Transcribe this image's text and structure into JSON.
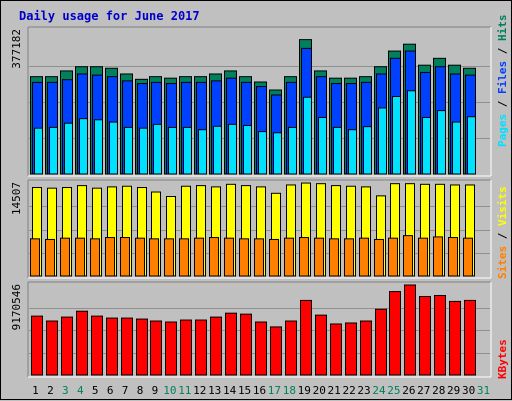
{
  "title": "Daily usage for June 2017",
  "colors": {
    "hits": "#00805c",
    "files": "#0040ff",
    "pages": "#00e0ff",
    "visits": "#ffff00",
    "sites": "#ff8000",
    "kbytes": "#ff0000",
    "weekday_label": "#000000",
    "weekend_label": "#00805c",
    "panel_bg": "#c0c0c0",
    "title": "#0000cc"
  },
  "right_labels": {
    "top": [
      {
        "text": "Hits",
        "color": "#00805c"
      },
      {
        "text": " / ",
        "color": "#000000"
      },
      {
        "text": "Files",
        "color": "#0040ff"
      },
      {
        "text": " / ",
        "color": "#000000"
      },
      {
        "text": "Pages",
        "color": "#00e0ff"
      }
    ],
    "middle": [
      {
        "text": "Visits",
        "color": "#ffff00"
      },
      {
        "text": " / ",
        "color": "#000000"
      },
      {
        "text": "Sites",
        "color": "#ff8000"
      }
    ],
    "bottom": [
      {
        "text": "KBytes",
        "color": "#ff0000"
      }
    ]
  },
  "chart_data": {
    "type": "bar",
    "title": "Daily usage for June 2017",
    "x": [
      "1",
      "2",
      "3",
      "4",
      "5",
      "6",
      "7",
      "8",
      "9",
      "10",
      "11",
      "12",
      "13",
      "14",
      "15",
      "16",
      "17",
      "18",
      "19",
      "20",
      "21",
      "22",
      "23",
      "24",
      "25",
      "26",
      "27",
      "28",
      "29",
      "30",
      "31"
    ],
    "weekend_days": [
      "3",
      "4",
      "10",
      "11",
      "17",
      "18",
      "24",
      "25",
      "31"
    ],
    "panels": [
      {
        "name": "hits-files-pages",
        "ymax_label": "377182",
        "ylim": [
          0,
          377182
        ],
        "series": [
          {
            "name": "Hits",
            "values": [
              255000,
              255000,
              270000,
              281000,
              281000,
              277000,
              262000,
              248000,
              255000,
              251000,
              255000,
              255000,
              262000,
              270000,
              255000,
              241000,
              220000,
              255000,
              352000,
              270000,
              251000,
              251000,
              255000,
              281000,
              322000,
              340000,
              285000,
              303000,
              285000,
              277000,
              0
            ]
          },
          {
            "name": "Files",
            "values": [
              240000,
              240000,
              247000,
              262000,
              259000,
              255000,
              244000,
              237000,
              240000,
              237000,
              240000,
              240000,
              244000,
              251000,
              240000,
              229000,
              207000,
              240000,
              329000,
              255000,
              237000,
              237000,
              240000,
              262000,
              303000,
              322000,
              266000,
              281000,
              262000,
              259000,
              0
            ]
          },
          {
            "name": "Pages",
            "values": [
              120000,
              122000,
              133000,
              145000,
              142000,
              136000,
              122000,
              120000,
              130000,
              122000,
              122000,
              116000,
              125000,
              130000,
              127000,
              111000,
              108000,
              122000,
              201000,
              148000,
              122000,
              116000,
              124000,
              173000,
              203000,
              218000,
              148000,
              166000,
              136000,
              150000,
              0
            ]
          }
        ]
      },
      {
        "name": "visits-sites",
        "ymax_label": "14507",
        "ylim": [
          0,
          14507
        ],
        "series": [
          {
            "name": "Visits",
            "values": [
              13800,
              13700,
              13800,
              14100,
              13700,
              13900,
              14000,
              13800,
              13100,
              12400,
              14000,
              14100,
              13900,
              14300,
              14100,
              13900,
              12900,
              14200,
              14500,
              14400,
              14100,
              14000,
              13900,
              12500,
              14400,
              14400,
              14300,
              14300,
              14200,
              14200,
              0
            ]
          },
          {
            "name": "Sites",
            "values": [
              5800,
              5700,
              5900,
              5900,
              5800,
              6000,
              6000,
              5900,
              5800,
              5800,
              5800,
              5900,
              6000,
              5900,
              5800,
              5800,
              5700,
              5900,
              6000,
              5900,
              5800,
              5800,
              5900,
              5700,
              5900,
              6300,
              5900,
              6100,
              6000,
              5900,
              0
            ]
          }
        ]
      },
      {
        "name": "kbytes",
        "ymax_label": "9170546",
        "ylim": [
          0,
          9170546
        ],
        "series": [
          {
            "name": "KBytes",
            "values": [
              6000000,
              5500000,
              5900000,
              6500000,
              6000000,
              5800000,
              5800000,
              5700000,
              5500000,
              5400000,
              5600000,
              5600000,
              5900000,
              6300000,
              6200000,
              5400000,
              4900000,
              5500000,
              7600000,
              6100000,
              5200000,
              5300000,
              5500000,
              6700000,
              8500000,
              9170546,
              8000000,
              8100000,
              7500000,
              7600000,
              0
            ]
          }
        ]
      }
    ]
  }
}
